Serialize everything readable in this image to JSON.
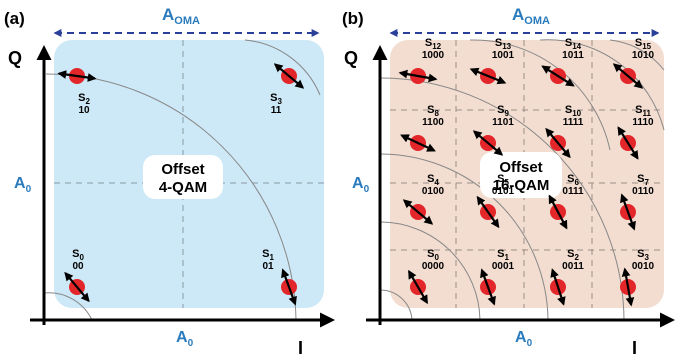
{
  "colors": {
    "panel_a_bg": "#cde8f6",
    "panel_b_bg": "#f2ddd0",
    "accent_blue": "#2a7bbd",
    "dash_blue": "#2a3f9a",
    "point_red": "#e3262a",
    "axis": "#000000"
  },
  "panel_a": {
    "label": "(a)",
    "oma_label": "A",
    "oma_sub": "OMA",
    "a0_label": "A",
    "a0_sub": "0",
    "q_label": "Q",
    "i_label": "I",
    "center_line1": "Offset",
    "center_line2": "4-QAM",
    "symbols": [
      {
        "s": "S",
        "sub": "0",
        "code": "00"
      },
      {
        "s": "S",
        "sub": "1",
        "code": "01"
      },
      {
        "s": "S",
        "sub": "2",
        "code": "10"
      },
      {
        "s": "S",
        "sub": "3",
        "code": "11"
      }
    ]
  },
  "panel_b": {
    "label": "(b)",
    "oma_label": "A",
    "oma_sub": "OMA",
    "a0_label": "A",
    "a0_sub": "0",
    "q_label": "Q",
    "i_label": "I",
    "center_line1": "Offset",
    "center_line2": "16-QAM",
    "symbols": [
      {
        "s": "S",
        "sub": "0",
        "code": "0000"
      },
      {
        "s": "S",
        "sub": "1",
        "code": "0001"
      },
      {
        "s": "S",
        "sub": "2",
        "code": "0011"
      },
      {
        "s": "S",
        "sub": "3",
        "code": "0010"
      },
      {
        "s": "S",
        "sub": "4",
        "code": "0100"
      },
      {
        "s": "S",
        "sub": "5",
        "code": "0101"
      },
      {
        "s": "S",
        "sub": "6",
        "code": "0111"
      },
      {
        "s": "S",
        "sub": "7",
        "code": "0110"
      },
      {
        "s": "S",
        "sub": "8",
        "code": "1100"
      },
      {
        "s": "S",
        "sub": "9",
        "code": "1101"
      },
      {
        "s": "S",
        "sub": "10",
        "code": "1111"
      },
      {
        "s": "S",
        "sub": "11",
        "code": "1110"
      },
      {
        "s": "S",
        "sub": "12",
        "code": "1000"
      },
      {
        "s": "S",
        "sub": "13",
        "code": "1001"
      },
      {
        "s": "S",
        "sub": "14",
        "code": "1011"
      },
      {
        "s": "S",
        "sub": "15",
        "code": "1010"
      }
    ]
  }
}
